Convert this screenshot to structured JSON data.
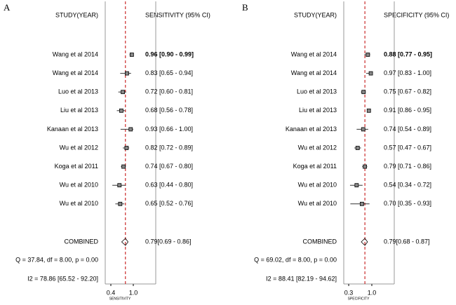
{
  "chart_data": [
    {
      "type": "forest",
      "panel_label": "A",
      "study_header": "STUDY(YEAR)",
      "ci_header": "SENSITIVITY (95% CI)",
      "studies": [
        "Wang et al 2014",
        "Wang et al 2014",
        "Luo et al 2013",
        "Liu et al 2013",
        "Kanaan et al 2013",
        "Wu et al 2012",
        "Koga et al 2011",
        "Wu et al 2010",
        "Wu et al 2010"
      ],
      "values": [
        0.96,
        0.83,
        0.72,
        0.68,
        0.93,
        0.82,
        0.74,
        0.63,
        0.65
      ],
      "lower": [
        0.9,
        0.65,
        0.6,
        0.56,
        0.66,
        0.72,
        0.67,
        0.44,
        0.52
      ],
      "upper": [
        0.99,
        0.94,
        0.81,
        0.78,
        1.0,
        0.89,
        0.8,
        0.8,
        0.76
      ],
      "value_labels": [
        "0.96 [0.90 - 0.99]",
        "0.83 [0.65 - 0.94]",
        "0.72 [0.60 - 0.81]",
        "0.68 [0.56 - 0.78]",
        "0.93 [0.66 - 1.00]",
        "0.82 [0.72 - 0.89]",
        "0.74 [0.67 - 0.80]",
        "0.63 [0.44 - 0.80]",
        "0.65 [0.52 - 0.76]"
      ],
      "combined": {
        "label": "COMBINED",
        "value": 0.79,
        "lower": 0.69,
        "upper": 0.86,
        "value_label": "0.79[0.69 - 0.86]"
      },
      "heterogeneity": "Q = 37.84, df = 8.00, p =  0.00",
      "i2": "I2 = 78.86 [65.52 - 92.20]",
      "xlabel": "SENSITIVITY",
      "xlim": [
        0.25,
        1.6
      ],
      "xticks": [
        0.4,
        {
          "value": 1,
          "label": "1.0"
        }
      ],
      "color": "#c00000"
    },
    {
      "type": "forest",
      "panel_label": "B",
      "study_header": "STUDY(YEAR)",
      "ci_header": "SPECIFICITY (95% CI)",
      "studies": [
        "Wang et al 2014",
        "Wang et al 2014",
        "Luo et al 2013",
        "Liu et al 2013",
        "Kanaan et al 2013",
        "Wu et al 2012",
        "Koga et al 2011",
        "Wu et al 2010",
        "Wu et al 2010"
      ],
      "values": [
        0.88,
        0.97,
        0.75,
        0.91,
        0.74,
        0.57,
        0.79,
        0.54,
        0.7
      ],
      "lower": [
        0.77,
        0.83,
        0.67,
        0.86,
        0.54,
        0.47,
        0.71,
        0.34,
        0.35
      ],
      "upper": [
        0.95,
        1.0,
        0.82,
        0.95,
        0.89,
        0.67,
        0.86,
        0.72,
        0.93
      ],
      "value_labels": [
        "0.88 [0.77 - 0.95]",
        "0.97 [0.83 - 1.00]",
        "0.75 [0.67 - 0.82]",
        "0.91 [0.86 - 0.95]",
        "0.74 [0.54 - 0.89]",
        "0.57 [0.47 - 0.67]",
        "0.79 [0.71 - 0.86]",
        "0.54 [0.34 - 0.72]",
        "0.70 [0.35 - 0.93]"
      ],
      "combined": {
        "label": "COMBINED",
        "value": 0.79,
        "lower": 0.68,
        "upper": 0.87,
        "value_label": "0.79[0.68 - 0.87]"
      },
      "heterogeneity": "Q = 69.02, df = 8.00, p =  0.00",
      "i2": "I2 = 88.41 [82.19 - 94.62]",
      "xlabel": "SPECIFICITY",
      "xlim": [
        0.15,
        1.68
      ],
      "xticks": [
        0.3,
        {
          "value": 1,
          "label": "1.0"
        }
      ],
      "color": "#c00000"
    }
  ]
}
